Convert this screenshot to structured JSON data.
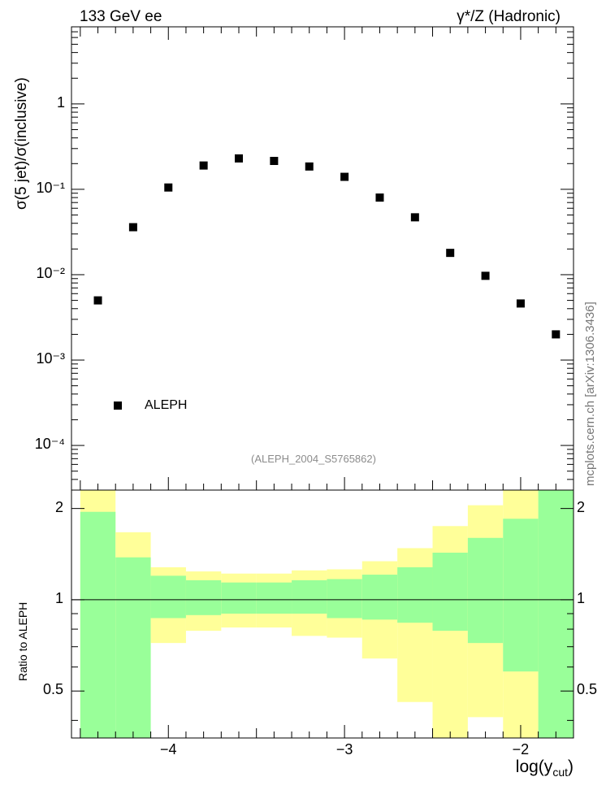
{
  "header": {
    "left": "133 GeV ee",
    "right": "γ*/Z (Hadronic)"
  },
  "side_label": "mcplots.cern.ch [arXiv:1306.3436]",
  "reference_label": "(ALEPH_2004_S5765862)",
  "legend": {
    "marker": "square",
    "label": "ALEPH"
  },
  "axes": {
    "ylabel_main": "σ(5 jet)/σ(inclusive)",
    "ylabel_ratio": "Ratio to ALEPH",
    "xlabel_main": "log(y",
    "xlabel_sub": "cut",
    "xlabel_close": ")"
  },
  "colors": {
    "data_marker": "#000000",
    "band_outer": "#ffff99",
    "band_inner": "#99ff99",
    "ref_line": "#000000"
  },
  "chart_data": [
    {
      "type": "scatter",
      "yscale": "log",
      "xlim": [
        -4.55,
        -1.7
      ],
      "ylim": [
        3e-05,
        8
      ],
      "ytick_labels": [
        "10⁻⁴",
        "10⁻³",
        "10⁻²",
        "10⁻¹",
        "1"
      ],
      "ytick_values": [
        0.0001,
        0.001,
        0.01,
        0.1,
        1
      ],
      "series": [
        {
          "name": "ALEPH",
          "x": [
            -4.4,
            -4.2,
            -4.0,
            -3.8,
            -3.6,
            -3.4,
            -3.2,
            -3.0,
            -2.8,
            -2.6,
            -2.4,
            -2.2,
            -2.0,
            -1.8
          ],
          "y": [
            0.005,
            0.036,
            0.105,
            0.19,
            0.23,
            0.215,
            0.185,
            0.14,
            0.08,
            0.047,
            0.018,
            0.0097,
            0.0046,
            0.002
          ]
        }
      ]
    },
    {
      "type": "area",
      "description_of_bands": "ratio uncertainty bands per bin",
      "xlim": [
        -4.55,
        -1.7
      ],
      "ylim": [
        0.35,
        2.3
      ],
      "ytick_labels": [
        "0.5",
        "1",
        "2"
      ],
      "ytick_values": [
        0.5,
        1,
        2
      ],
      "xtick_labels": [
        "−4",
        "−3",
        "−2"
      ],
      "xtick_values": [
        -4,
        -3,
        -2
      ],
      "reference_line": 1,
      "bin_edges": [
        -4.5,
        -4.3,
        -4.1,
        -3.9,
        -3.7,
        -3.5,
        -3.3,
        -3.1,
        -2.9,
        -2.7,
        -2.5,
        -2.3,
        -2.1,
        -1.9,
        -1.7
      ],
      "inner_band": {
        "low": [
          0.3,
          0.3,
          0.87,
          0.89,
          0.9,
          0.9,
          0.9,
          0.87,
          0.86,
          0.84,
          0.79,
          0.72,
          0.58,
          0.3
        ],
        "high": [
          1.95,
          1.38,
          1.2,
          1.16,
          1.14,
          1.14,
          1.16,
          1.17,
          1.21,
          1.28,
          1.43,
          1.6,
          1.85,
          2.3
        ]
      },
      "outer_band": {
        "low": [
          0.3,
          0.73,
          0.72,
          0.79,
          0.81,
          0.81,
          0.76,
          0.75,
          0.64,
          0.46,
          0.35,
          0.41,
          0.3,
          0.3
        ],
        "high": [
          2.3,
          1.67,
          1.28,
          1.24,
          1.22,
          1.22,
          1.25,
          1.26,
          1.34,
          1.48,
          1.75,
          2.05,
          2.3,
          2.3
        ]
      }
    }
  ]
}
